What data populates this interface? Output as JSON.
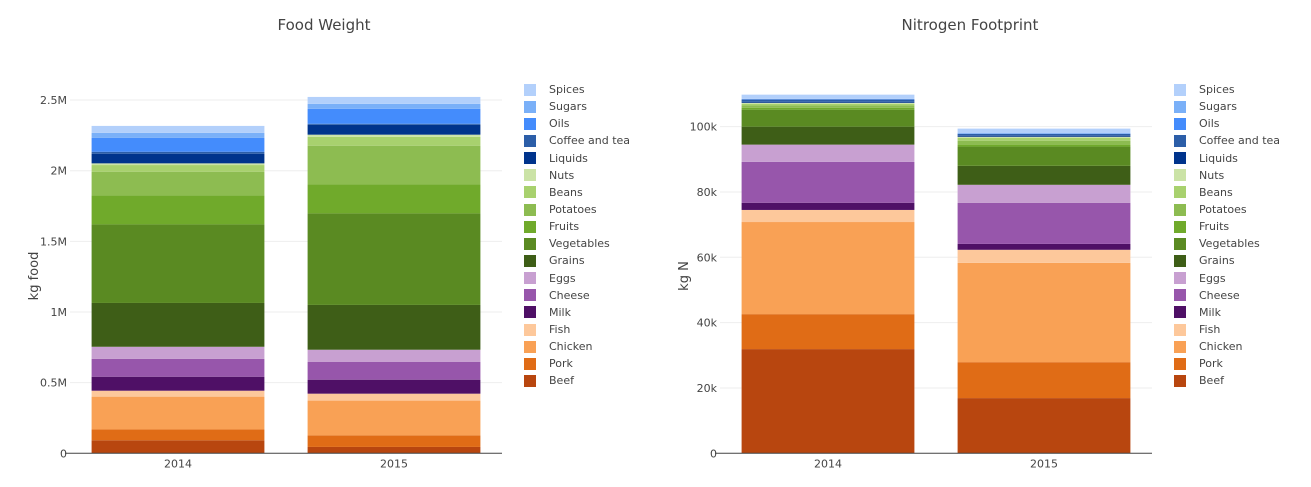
{
  "legend_order": [
    "Spices",
    "Sugars",
    "Oils",
    "Coffee and tea",
    "Liquids",
    "Nuts",
    "Beans",
    "Potatoes",
    "Fruits",
    "Vegetables",
    "Grains",
    "Eggs",
    "Cheese",
    "Milk",
    "Fish",
    "Chicken",
    "Pork",
    "Beef"
  ],
  "colors": {
    "Beef": "#b8460f",
    "Pork": "#e06c16",
    "Chicken": "#f9a155",
    "Fish": "#fdc89b",
    "Milk": "#4f1066",
    "Cheese": "#9756ab",
    "Eggs": "#c8a0d1",
    "Grains": "#3e5e17",
    "Vegetables": "#5a8a22",
    "Fruits": "#70aa2b",
    "Potatoes": "#8dbc51",
    "Beans": "#a8d16e",
    "Nuts": "#cbe3a6",
    "Liquids": "#00348c",
    "Coffee and tea": "#2c5ea8",
    "Oils": "#448cfc",
    "Sugars": "#7ab0f8",
    "Spices": "#b3d0fb"
  },
  "chart_data": [
    {
      "type": "bar",
      "barmode": "stack",
      "title": "Food Weight",
      "xlabel": "",
      "ylabel": "kg food",
      "categories": [
        "2014",
        "2015"
      ],
      "ylim": [
        0,
        2500000
      ],
      "yticks": [
        0,
        500000,
        1000000,
        1500000,
        2000000,
        2500000
      ],
      "yticklabels": [
        "0",
        "0.5M",
        "1M",
        "1.5M",
        "2M",
        "2.5M"
      ],
      "grid": true,
      "legend_position": "right",
      "series": [
        {
          "name": "Beef",
          "values": [
            92000,
            45000
          ]
        },
        {
          "name": "Pork",
          "values": [
            77000,
            82000
          ]
        },
        {
          "name": "Chicken",
          "values": [
            232000,
            246000
          ]
        },
        {
          "name": "Fish",
          "values": [
            42000,
            49000
          ]
        },
        {
          "name": "Milk",
          "values": [
            99000,
            99000
          ]
        },
        {
          "name": "Cheese",
          "values": [
            127000,
            127000
          ]
        },
        {
          "name": "Eggs",
          "values": [
            85000,
            85000
          ]
        },
        {
          "name": "Grains",
          "values": [
            310000,
            317000
          ]
        },
        {
          "name": "Vegetables",
          "values": [
            556000,
            648000
          ]
        },
        {
          "name": "Fruits",
          "values": [
            204000,
            204000
          ]
        },
        {
          "name": "Potatoes",
          "values": [
            169000,
            275000
          ]
        },
        {
          "name": "Beans",
          "values": [
            47000,
            63000
          ]
        },
        {
          "name": "Nuts",
          "values": [
            12000,
            15000
          ]
        },
        {
          "name": "Liquids",
          "values": [
            68000,
            70000
          ]
        },
        {
          "name": "Coffee and tea",
          "values": [
            14000,
            7000
          ]
        },
        {
          "name": "Oils",
          "values": [
            98000,
            106000
          ]
        },
        {
          "name": "Sugars",
          "values": [
            36000,
            35000
          ]
        },
        {
          "name": "Spices",
          "values": [
            49000,
            49000
          ]
        }
      ]
    },
    {
      "type": "bar",
      "barmode": "stack",
      "title": "Nitrogen Footprint",
      "xlabel": "",
      "ylabel": "kg N",
      "categories": [
        "2014",
        "2015"
      ],
      "ylim": [
        0,
        108800
      ],
      "yticks": [
        0,
        20000,
        40000,
        60000,
        80000,
        100000
      ],
      "yticklabels": [
        "0",
        "20k",
        "40k",
        "60k",
        "80k",
        "100k"
      ],
      "grid": true,
      "legend_position": "right",
      "series": [
        {
          "name": "Beef",
          "values": [
            31900,
            16900
          ]
        },
        {
          "name": "Pork",
          "values": [
            10700,
            11000
          ]
        },
        {
          "name": "Chicken",
          "values": [
            28200,
            30400
          ]
        },
        {
          "name": "Fish",
          "values": [
            3700,
            4000
          ]
        },
        {
          "name": "Milk",
          "values": [
            2200,
            1800
          ]
        },
        {
          "name": "Cheese",
          "values": [
            12500,
            12600
          ]
        },
        {
          "name": "Eggs",
          "values": [
            5300,
            5500
          ]
        },
        {
          "name": "Grains",
          "values": [
            5500,
            5800
          ]
        },
        {
          "name": "Vegetables",
          "values": [
            5200,
            5900
          ]
        },
        {
          "name": "Fruits",
          "values": [
            600,
            600
          ]
        },
        {
          "name": "Potatoes",
          "values": [
            700,
            1200
          ]
        },
        {
          "name": "Beans",
          "values": [
            500,
            900
          ]
        },
        {
          "name": "Nuts",
          "values": [
            300,
            300
          ]
        },
        {
          "name": "Liquids",
          "values": [
            300,
            300
          ]
        },
        {
          "name": "Coffee and tea",
          "values": [
            700,
            600
          ]
        },
        {
          "name": "Oils",
          "values": [
            100,
            100
          ]
        },
        {
          "name": "Sugars",
          "values": [
            100,
            100
          ]
        },
        {
          "name": "Spices",
          "values": [
            1300,
            1400
          ]
        }
      ]
    }
  ]
}
